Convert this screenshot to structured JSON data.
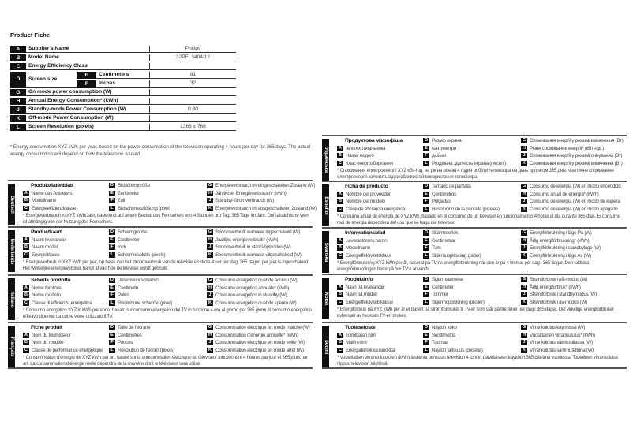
{
  "fiche": {
    "title": "Product Fiche",
    "rows": [
      {
        "letter": "A",
        "label": "Supplier's Name",
        "value": "Philips"
      },
      {
        "letter": "B",
        "label": "Model Name",
        "value": "32PFL3404/12"
      },
      {
        "letter": "C",
        "label": "Energy Efficiency Class",
        "value": ""
      },
      {
        "letter": "D",
        "label": "Screen size",
        "sub": [
          {
            "letter": "E",
            "label": "Centimeters",
            "value": "81"
          },
          {
            "letter": "F",
            "label": "Inches",
            "value": "32"
          }
        ]
      },
      {
        "letter": "G",
        "label": "On mode power consumption (W)",
        "value": ""
      },
      {
        "letter": "H",
        "label": "Annual Energy Consumption* (kWh)",
        "value": ""
      },
      {
        "letter": "J",
        "label": "Standby-mode Power Consumption (W)",
        "value": "0.30"
      },
      {
        "letter": "K",
        "label": "Off-mode Power Consumption (W)",
        "value": ""
      },
      {
        "letter": "L",
        "label": "Screen Resolution (pixels)",
        "value": "1366 x 768"
      }
    ],
    "footnote": "* Energy consumption XYZ kWh per year, based on the power consumption of the television operating 4 hours per day for 365 days. The actual energy consumption will depend on how the television is used."
  },
  "languages": [
    {
      "lang": "Deutsch",
      "title": "Produktdatenblatt",
      "A": "Name des Anbieters",
      "B": "Modellname",
      "C": "Energieeffizienzklasse",
      "D": "Bildschirmgröße",
      "E": "Zentimeter",
      "F": "Zoll",
      "L": "Bildschirmauflösung (pixel)",
      "G": "Energieverbrauch im eingeschalteten Zustand (W)",
      "H": "Jährlicher Energieverbrauch* (kWh)",
      "J": "Standby-Stromverbrauch (W)",
      "K": "Energieverbrauch im ausgeschalteten Zustand (W)",
      "note": "* Energieverbrauch in XYZ kWh/Jahr, basierend auf einem Betrieb des Fernsehers von 4 Stunden pro Tag, 365 Tage im Jahr. Der tatsächliche Wert ist abhängig von der Nutzung des Fernsehers."
    },
    {
      "lang": "Nederlands",
      "title": "Productkaart",
      "A": "Naam leverancier",
      "B": "Naam model",
      "C": "Energieklasse",
      "D": "Schermgrootte",
      "E": "Centimeter",
      "F": "Inch",
      "L": "Schermresolutie (pixels)",
      "G": "Stroomverbruik wanneer ingeschakeld (W)",
      "H": "Jaarlijks energieverbruik* (kWh)",
      "J": "Stroomverbruik in stand-bymodus (W)",
      "K": "Stroomverbruik wanneer uitgeschakeld (W)",
      "note": "* Energieverbruik in XYZ kWh per jaar, op basis van het stroomverbruik van de televisie als deze 4 uur per dag, 365 dagen per jaar is ingeschakeld. Het werkelijke energieverbruik hangt af van hoe de televisie wordt gebruikt."
    },
    {
      "lang": "Italiano",
      "title": "Scheda prodotto",
      "A": "Nome fornitore",
      "B": "Nome modello",
      "C": "Classe di efficienza energetica",
      "D": "Dimensioni schermo",
      "E": "Centimetri",
      "F": "Pollici",
      "L": "Risoluzione schermo (pixel)",
      "G": "Consumo energetico quando acceso (W)",
      "H": "Consumo energetico annuale* (kWh)",
      "J": "Consumo energetico in standby (W)",
      "K": "Consumo energetico quando spento (W)",
      "note": "* Consumo energetico XYZ in kWh per anno, basato sul consumo energetico del TV in funzione 4 ore al giorno per 365 giorni. Il consumo energetico effettivo dipende da come viene utilizzato il TV."
    },
    {
      "lang": "Français",
      "title": "Fiche produit",
      "A": "Nom du fournisseur",
      "B": "Nom du modèle",
      "C": "Classe de performance énergétique",
      "D": "Taille de l'écrane",
      "E": "Centimètres",
      "F": "Pouces",
      "L": "Résolution de l'écran (pixels)",
      "G": "Consommation électrique en mode marche (W)",
      "H": "Consommation d'énergie annuelle* (kWh)",
      "J": "Consommation électrique en mode veille (W)",
      "K": "Consommation électrique en mode arrêt (W)",
      "note": "* Consommation d'énergie de XYZ kWh par an, basée sur la consommation électrique du téléviseur fonctionnant 4 heures par jour et 365 jours par an. La consommation d'énergie réelle dépendra de la manière dont le téléviseur sera utilisé."
    },
    {
      "lang": "Українська",
      "title": "Продуктова мікрофіша",
      "A": "Ім'я постачальника",
      "B": "Назва моделі",
      "C": "Клас енергозберігання",
      "D": "Розмір екрана",
      "E": "сантиметри",
      "F": "дюйми",
      "L": "Роздільна здатність екрана (пікселі)",
      "G": "Споживання енергії у режимі ввімкнення (Вт)",
      "H": "Річне споживання енергії* (кВт-год.)",
      "J": "Споживання енергії у режимі очікування (Вт)",
      "K": "Споживання енергії у режимі вимкнення (Вт)",
      "note": "* Споживання електроенергії XYZ кВт-год. на рік на основі 4 годин роботи телевізора на день протягом 365 днів. Фактичне споживання електроенергії залежить від особливостей використання телевізора."
    },
    {
      "lang": "Español",
      "title": "Ficha de producto",
      "A": "Nombre del proveedor",
      "B": "Nombre del modelo",
      "C": "Clase de eficiencia energética",
      "D": "Tamaño de pantalla",
      "E": "Centímetros",
      "F": "Pulgadas",
      "L": "Resolución de la pantalla (píxeles)",
      "G": "Consumo de energía (W) en modo encendido",
      "H": "Consumo anual de energía* (kWh)",
      "J": "Consumo de energía (W) en modo de espera",
      "K": "Consumo de energía (W) en modo apagado",
      "note": "* Consumo anual de energía de XYZ kWh, basado en el consumo de un televisor en funcionamiento 4 horas al día durante 365 días. El consumo real de energía dependerá del uso que se haga del televisor."
    },
    {
      "lang": "Svenska",
      "title": "Informationsblad",
      "A": "Leverantörens namn",
      "B": "Modellnamn",
      "C": "Energieffektivitetsklass",
      "D": "Skärmstorlek",
      "E": "Centimetrar",
      "F": "Tum",
      "L": "Skärmupplösning (pixlar)",
      "G": "Energiförbrukning i läge På (W)",
      "H": "Årlig energiförbrukning* (kWh)",
      "J": "Energiförbrukning i standbyläge (W)",
      "K": "Energiförbrukning i läge Av (W)",
      "note": "* Energiförbrukning XYZ kWh per år, baserat på TV:ns energiförbrukning när den är på 4 timmar per dag i 365 dagar. Den faktiska energiförbrukningen beror på hur TV:n används."
    },
    {
      "lang": "Norsk",
      "title": "Produktinfo",
      "A": "Navn på leverandør",
      "B": "Navn på modell",
      "C": "Energieffektivitetsklasse",
      "D": "Skjermstørrelse",
      "E": "Centimeter",
      "F": "Tommer",
      "L": "Skjermoppløsning (piksler)",
      "G": "Strømforbruk i på-modus (W)",
      "H": "Årlig energiforbruk* (kWh)",
      "J": "Strømforbruk i standbymodus (W)",
      "K": "Strømforbruk i av-modus (W)",
      "note": "* Energiforbruk på XYZ kWh per år er basert på strømforbruket til TV-er som står på fire timer per dag i 365 dager. Det virkelige energiforbruket avhenger av hvordan TV-en brukes."
    },
    {
      "lang": "Suomi",
      "title": "Tuoteseloste",
      "A": "Toimittajan nimi",
      "B": "Mallin nimi",
      "C": "Energiatehokkuusluokka",
      "D": "Näytön koko",
      "E": "Senttimetriä",
      "F": "Tuumaa",
      "L": "Näytön tarkkuus (pikseliä)",
      "G": "Virrankulutus käynnissä (W)",
      "H": "Vuosittainen virrankulutus* (kWh)",
      "J": "Virrankulutus valmiustilassa (W)",
      "K": "Virrankulutus sammutettuna (W)",
      "note": "* Vuosittaisen virrankulutuksen (kWh) laskenta perustuu television 4 tunnin päivittäiseen käyttöön 365 päivänä vuodessa. Todellinen virrankulutus riippuu television käytöstä."
    }
  ]
}
